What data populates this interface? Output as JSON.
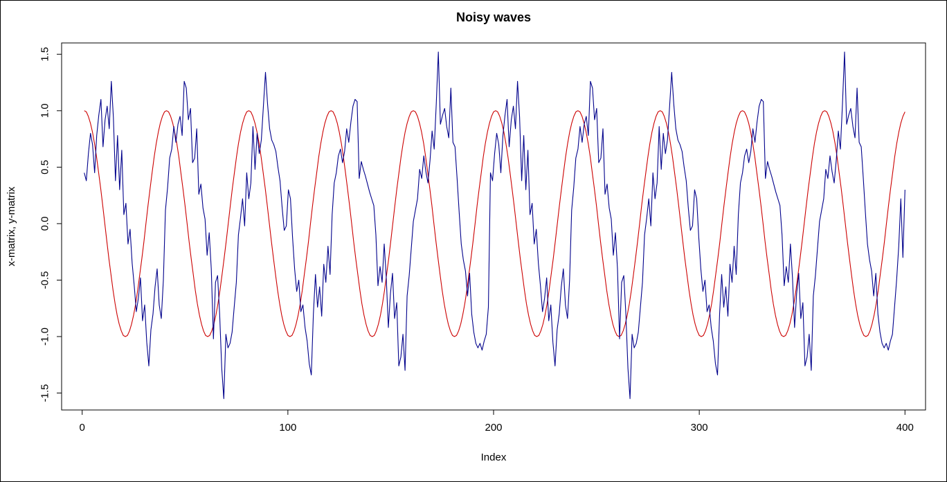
{
  "chart_data": {
    "type": "line",
    "title": "Noisy waves",
    "xlabel": "Index",
    "ylabel": "x-matrix, y-matrix",
    "xlim": [
      -10,
      410
    ],
    "ylim": [
      -1.65,
      1.6
    ],
    "x_ticks": [
      0,
      100,
      200,
      300,
      400
    ],
    "x_tick_labels": [
      "0",
      "100",
      "200",
      "300",
      "400"
    ],
    "y_ticks": [
      -1.5,
      -1.0,
      -0.5,
      0.0,
      0.5,
      1.0,
      1.5
    ],
    "y_tick_labels": [
      "-1.5",
      "-1.0",
      "-0.5",
      "0.0",
      "0.5",
      "1.0",
      "1.5"
    ],
    "grid": false,
    "legend": "none",
    "series": [
      {
        "color": "#cc0000",
        "description": "cos wave, period 40",
        "x_start": 1,
        "x_end": 400,
        "values": [
          1.0,
          0.99,
          0.95,
          0.89,
          0.81,
          0.71,
          0.59,
          0.45,
          0.31,
          0.16,
          0.0,
          -0.16,
          -0.31,
          -0.45,
          -0.59,
          -0.71,
          -0.81,
          -0.89,
          -0.95,
          -0.99,
          -1.0,
          -0.99,
          -0.95,
          -0.89,
          -0.81,
          -0.71,
          -0.59,
          -0.45,
          -0.31,
          -0.16,
          0.0,
          0.16,
          0.31,
          0.45,
          0.59,
          0.71,
          0.81,
          0.89,
          0.95,
          0.99,
          1.0,
          0.99,
          0.95,
          0.89,
          0.81,
          0.71,
          0.59,
          0.45,
          0.31,
          0.16,
          0.0,
          -0.16,
          -0.31,
          -0.45,
          -0.59,
          -0.71,
          -0.81,
          -0.89,
          -0.95,
          -0.99,
          -1.0,
          -0.99,
          -0.95,
          -0.89,
          -0.81,
          -0.71,
          -0.59,
          -0.45,
          -0.31,
          -0.16,
          0.0,
          0.16,
          0.31,
          0.45,
          0.59,
          0.71,
          0.81,
          0.89,
          0.95,
          0.99,
          1.0,
          0.99,
          0.95,
          0.89,
          0.81,
          0.71,
          0.59,
          0.45,
          0.31,
          0.16,
          0.0,
          -0.16,
          -0.31,
          -0.45,
          -0.59,
          -0.71,
          -0.81,
          -0.89,
          -0.95,
          -0.99,
          -1.0,
          -0.99,
          -0.95,
          -0.89,
          -0.81,
          -0.71,
          -0.59,
          -0.45,
          -0.31,
          -0.16,
          0.0,
          0.16,
          0.31,
          0.45,
          0.59,
          0.71,
          0.81,
          0.89,
          0.95,
          0.99,
          1.0,
          0.99,
          0.95,
          0.89,
          0.81,
          0.71,
          0.59,
          0.45,
          0.31,
          0.16,
          0.0,
          -0.16,
          -0.31,
          -0.45,
          -0.59,
          -0.71,
          -0.81,
          -0.89,
          -0.95,
          -0.99,
          -1.0,
          -0.99,
          -0.95,
          -0.89,
          -0.81,
          -0.71,
          -0.59,
          -0.45,
          -0.31,
          -0.16,
          0.0,
          0.16,
          0.31,
          0.45,
          0.59,
          0.71,
          0.81,
          0.89,
          0.95,
          0.99,
          1.0,
          0.99,
          0.95,
          0.89,
          0.81,
          0.71,
          0.59,
          0.45,
          0.31,
          0.16,
          0.0,
          -0.16,
          -0.31,
          -0.45,
          -0.59,
          -0.71,
          -0.81,
          -0.89,
          -0.95,
          -0.99,
          -1.0,
          -0.99,
          -0.95,
          -0.89,
          -0.81,
          -0.71,
          -0.59,
          -0.45,
          -0.31,
          -0.16,
          0.0,
          0.16,
          0.31,
          0.45,
          0.59,
          0.71,
          0.81,
          0.89,
          0.95,
          0.99,
          1.0,
          0.99,
          0.95,
          0.89,
          0.81,
          0.71,
          0.59,
          0.45,
          0.31,
          0.16,
          0.0,
          -0.16,
          -0.31,
          -0.45,
          -0.59,
          -0.71,
          -0.81,
          -0.89,
          -0.95,
          -0.99,
          -1.0,
          -0.99,
          -0.95,
          -0.89,
          -0.81,
          -0.71,
          -0.59,
          -0.45,
          -0.31,
          -0.16,
          0.0,
          0.16,
          0.31,
          0.45,
          0.59,
          0.71,
          0.81,
          0.89,
          0.95,
          0.99,
          1.0,
          0.99,
          0.95,
          0.89,
          0.81,
          0.71,
          0.59,
          0.45,
          0.31,
          0.16,
          0.0,
          -0.16,
          -0.31,
          -0.45,
          -0.59,
          -0.71,
          -0.81,
          -0.89,
          -0.95,
          -0.99,
          -1.0,
          -0.99,
          -0.95,
          -0.89,
          -0.81,
          -0.71,
          -0.59,
          -0.45,
          -0.31,
          -0.16,
          0.0,
          0.16,
          0.31,
          0.45,
          0.59,
          0.71,
          0.81,
          0.89,
          0.95,
          0.99,
          1.0,
          0.99,
          0.95,
          0.89,
          0.81,
          0.71,
          0.59,
          0.45,
          0.31,
          0.16,
          0.0,
          -0.16,
          -0.31,
          -0.45,
          -0.59,
          -0.71,
          -0.81,
          -0.89,
          -0.95,
          -0.99,
          -1.0,
          -0.99,
          -0.95,
          -0.89,
          -0.81,
          -0.71,
          -0.59,
          -0.45,
          -0.31,
          -0.16,
          0.0,
          0.16,
          0.31,
          0.45,
          0.59,
          0.71,
          0.81,
          0.89,
          0.95,
          0.99,
          1.0,
          0.99,
          0.95,
          0.89,
          0.81,
          0.71,
          0.59,
          0.45,
          0.31,
          0.16,
          0.0,
          -0.16,
          -0.31,
          -0.45,
          -0.59,
          -0.71,
          -0.81,
          -0.89,
          -0.95,
          -0.99,
          -1.0,
          -0.99,
          -0.95,
          -0.89,
          -0.81,
          -0.71,
          -0.59,
          -0.45,
          -0.31,
          -0.16,
          0.0,
          0.16,
          0.31,
          0.45,
          0.59,
          0.71,
          0.81,
          0.89,
          0.95,
          0.99,
          1.0,
          0.99,
          0.95,
          0.89,
          0.81,
          0.71,
          0.59,
          0.45,
          0.31,
          0.16,
          0.0,
          -0.16,
          -0.31,
          -0.45,
          -0.59,
          -0.71,
          -0.81,
          -0.89,
          -0.95,
          -0.99,
          -1.0,
          -0.99,
          -0.95,
          -0.89,
          -0.81,
          -0.71,
          -0.59,
          -0.45,
          -0.31,
          -0.16,
          0.0,
          0.16,
          0.31,
          0.45,
          0.59,
          0.71,
          0.81,
          0.89,
          0.95,
          0.99
        ]
      },
      {
        "color": "#00008b",
        "description": "noisy sine wave, period 40 (period 200 pattern repeats)",
        "x_start": 1,
        "x_end": 400,
        "values": [
          0.45,
          0.38,
          0.62,
          0.8,
          0.7,
          0.45,
          0.78,
          0.96,
          1.1,
          0.68,
          0.92,
          1.04,
          0.84,
          1.26,
          0.94,
          0.38,
          0.78,
          0.3,
          0.65,
          0.08,
          0.18,
          -0.18,
          -0.05,
          -0.35,
          -0.55,
          -0.78,
          -0.66,
          -0.48,
          -0.86,
          -0.72,
          -1.05,
          -1.26,
          -0.94,
          -0.8,
          -0.56,
          -0.4,
          -0.72,
          -0.84,
          -0.5,
          0.12,
          0.32,
          0.58,
          0.66,
          0.86,
          0.72,
          0.88,
          0.95,
          0.78,
          1.26,
          1.2,
          0.92,
          1.02,
          0.54,
          0.58,
          0.84,
          0.26,
          0.35,
          0.14,
          0.04,
          -0.28,
          -0.08,
          -0.4,
          -1.02,
          -0.52,
          -0.46,
          -0.8,
          -1.28,
          -1.55,
          -0.98,
          -1.1,
          -1.06,
          -0.96,
          -0.74,
          -0.52,
          -0.1,
          0.05,
          0.22,
          -0.02,
          0.45,
          0.22,
          0.36,
          0.86,
          0.48,
          0.8,
          0.62,
          0.74,
          1.04,
          1.34,
          1.06,
          0.84,
          0.74,
          0.7,
          0.64,
          0.5,
          0.38,
          0.14,
          -0.06,
          -0.02,
          0.3,
          0.22,
          -0.12,
          -0.4,
          -0.6,
          -0.5,
          -0.78,
          -0.72,
          -0.92,
          -1.04,
          -1.24,
          -1.34,
          -0.8,
          -0.45,
          -0.74,
          -0.56,
          -0.82,
          -0.36,
          -0.52,
          -0.2,
          -0.45,
          0.08,
          0.36,
          0.45,
          0.6,
          0.66,
          0.54,
          0.64,
          0.84,
          0.72,
          0.9,
          1.04,
          1.1,
          1.08,
          0.4,
          0.55,
          0.48,
          0.42,
          0.35,
          0.28,
          0.22,
          0.16,
          -0.1,
          -0.55,
          -0.38,
          -0.52,
          -0.18,
          -0.48,
          -0.92,
          -0.62,
          -0.44,
          -0.84,
          -0.7,
          -1.26,
          -1.18,
          -0.98,
          -1.3,
          -0.64,
          -0.46,
          -0.22,
          0.02,
          0.12,
          0.22,
          0.48,
          0.4,
          0.6,
          0.46,
          0.36,
          0.56,
          0.82,
          0.66,
          1.06,
          1.52,
          0.88,
          0.96,
          1.02,
          0.86,
          0.76,
          1.2,
          0.72,
          0.68,
          0.4,
          0.1,
          -0.18,
          -0.32,
          -0.42,
          -0.64,
          -0.44,
          -0.8,
          -0.96,
          -1.06,
          -1.1,
          -1.06,
          -1.12,
          -1.04,
          -0.98,
          -0.74,
          0.45,
          0.38,
          0.62,
          0.8,
          0.7,
          0.45,
          0.78,
          0.96,
          1.1,
          0.68,
          0.92,
          1.04,
          0.84,
          1.26,
          0.94,
          0.38,
          0.78,
          0.3,
          0.65,
          0.08,
          0.18,
          -0.18,
          -0.05,
          -0.35,
          -0.55,
          -0.78,
          -0.66,
          -0.48,
          -0.86,
          -0.72,
          -1.05,
          -1.26,
          -0.94,
          -0.8,
          -0.56,
          -0.4,
          -0.72,
          -0.84,
          -0.5,
          0.12,
          0.32,
          0.58,
          0.66,
          0.86,
          0.72,
          0.88,
          0.95,
          0.78,
          1.26,
          1.2,
          0.92,
          1.02,
          0.54,
          0.58,
          0.84,
          0.26,
          0.35,
          0.14,
          0.04,
          -0.28,
          -0.08,
          -0.4,
          -1.02,
          -0.52,
          -0.46,
          -0.8,
          -1.28,
          -1.55,
          -0.98,
          -1.1,
          -1.06,
          -0.96,
          -0.74,
          -0.52,
          -0.1,
          0.05,
          0.22,
          -0.02,
          0.45,
          0.22,
          0.36,
          0.86,
          0.48,
          0.8,
          0.62,
          0.74,
          1.04,
          1.34,
          1.06,
          0.84,
          0.74,
          0.7,
          0.64,
          0.5,
          0.38,
          0.14,
          -0.06,
          -0.02,
          0.3,
          0.22,
          -0.12,
          -0.4,
          -0.6,
          -0.5,
          -0.78,
          -0.72,
          -0.92,
          -1.04,
          -1.24,
          -1.34,
          -0.8,
          -0.45,
          -0.74,
          -0.56,
          -0.82,
          -0.36,
          -0.52,
          -0.2,
          -0.45,
          0.08,
          0.36,
          0.45,
          0.6,
          0.66,
          0.54,
          0.64,
          0.84,
          0.72,
          0.9,
          1.04,
          1.1,
          1.08,
          0.4,
          0.55,
          0.48,
          0.42,
          0.35,
          0.28,
          0.22,
          0.16,
          -0.1,
          -0.55,
          -0.38,
          -0.52,
          -0.18,
          -0.48,
          -0.92,
          -0.62,
          -0.44,
          -0.84,
          -0.7,
          -1.26,
          -1.18,
          -0.98,
          -1.3,
          -0.64,
          -0.46,
          -0.22,
          0.02,
          0.12,
          0.22,
          0.48,
          0.4,
          0.6,
          0.46,
          0.36,
          0.56,
          0.82,
          0.66,
          1.06,
          1.52,
          0.88,
          0.96,
          1.02,
          0.86,
          0.76,
          1.2,
          0.72,
          0.68,
          0.4,
          0.1,
          -0.18,
          -0.32,
          -0.42,
          -0.64,
          -0.44,
          -0.8,
          -0.96,
          -1.06,
          -1.1,
          -1.06,
          -1.12,
          -1.04,
          -0.98,
          -0.74,
          -0.5,
          -0.2,
          0.22,
          -0.3,
          0.3
        ]
      }
    ]
  }
}
